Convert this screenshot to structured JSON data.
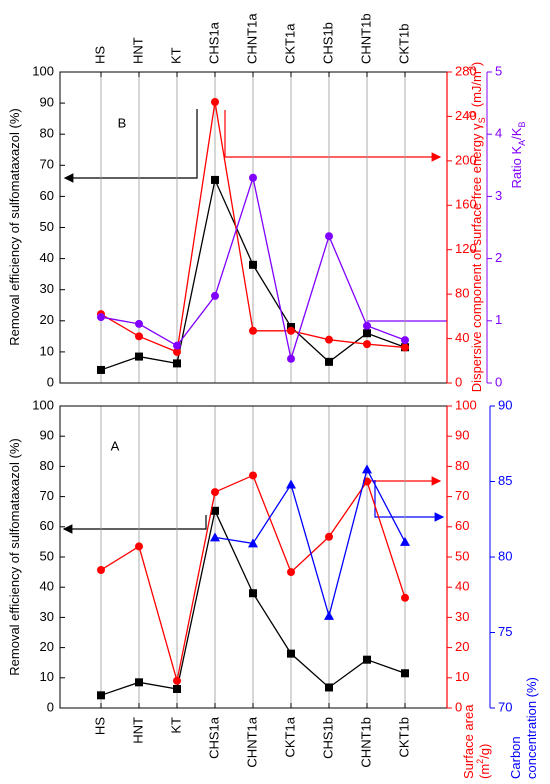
{
  "chart_data": [
    {
      "type": "line",
      "annotation": "B",
      "categories": [
        "HS",
        "HNT",
        "KT",
        "CHS1a",
        "CHNT1a",
        "CKT1a",
        "CHS1b",
        "CHNT1b",
        "CKT1b"
      ],
      "ylim": [
        0,
        100
      ],
      "yticks": [
        0,
        10,
        20,
        30,
        40,
        50,
        60,
        70,
        80,
        90,
        100
      ],
      "y2lim": [
        0,
        280
      ],
      "y2ticks": [
        0,
        40,
        80,
        120,
        160,
        200,
        240,
        280
      ],
      "y3lim": [
        0,
        5
      ],
      "y3ticks": [
        0,
        1,
        2,
        3,
        4,
        5
      ],
      "y_label": [
        [
          "Removal efficiency of sulfomataxazol (%)"
        ]
      ],
      "y2_label": [
        [
          "Dispersive component of surface free energy γ",
          {
            "text": "S",
            "script": "sub"
          },
          {
            "text": "D",
            "script": "super"
          },
          " (mJ/m",
          {
            "text": "2",
            "script": "super"
          },
          ")"
        ]
      ],
      "y3_label": [
        [
          "Ratio K",
          {
            "text": "A",
            "script": "sub"
          },
          "/K",
          {
            "text": "B",
            "script": "sub"
          }
        ]
      ],
      "series": [
        {
          "color": "#000000",
          "marker": "square",
          "axis": "y",
          "values": [
            4.2,
            8.5,
            6.3,
            65.3,
            38,
            18,
            6.8,
            16,
            11.5
          ]
        },
        {
          "color": "#ff0000",
          "marker": "circle",
          "axis": "y2",
          "values": [
            62,
            42,
            28,
            253,
            47,
            47,
            39,
            35,
            32
          ]
        },
        {
          "color": "#8000ff",
          "marker": "circle",
          "axis": "y3",
          "values": [
            1.06,
            0.95,
            0.6,
            1.4,
            3.3,
            0.39,
            2.36,
            0.92,
            0.69
          ]
        }
      ]
    },
    {
      "type": "line",
      "annotation": "A",
      "categories": [
        "HS",
        "HNT",
        "KT",
        "CHS1a",
        "CHNT1a",
        "CKT1a",
        "CHS1b",
        "CHNT1b",
        "CKT1b"
      ],
      "ylim": [
        0,
        100
      ],
      "yticks": [
        0,
        10,
        20,
        30,
        40,
        50,
        60,
        70,
        80,
        90,
        100
      ],
      "y2lim": [
        0,
        100
      ],
      "y2ticks": [
        0,
        10,
        20,
        30,
        40,
        50,
        60,
        70,
        80,
        90,
        100
      ],
      "y3lim": [
        70,
        90
      ],
      "y3ticks": [
        70,
        75,
        80,
        85,
        90
      ],
      "y_label": [
        [
          "Removal efficiency of sulfomataxazol  (%)"
        ]
      ],
      "y2_label": [
        [
          "Surface area"
        ],
        [
          "(m",
          {
            "text": "2",
            "script": "super"
          },
          "/g)"
        ]
      ],
      "y3_label": [
        [
          "Carbon"
        ],
        [
          "concentration (%)"
        ]
      ],
      "series": [
        {
          "color": "#000000",
          "marker": "square",
          "axis": "y",
          "values": [
            4.2,
            8.5,
            6.3,
            65.3,
            38,
            18,
            6.8,
            16,
            11.5
          ]
        },
        {
          "color": "#ff0000",
          "marker": "circle",
          "axis": "y2",
          "values": [
            45.7,
            53.5,
            9,
            71.5,
            77,
            45,
            56.7,
            75,
            36.5
          ]
        },
        {
          "color": "#0000ff",
          "marker": "triangle",
          "axis": "y3",
          "values": [
            null,
            null,
            null,
            81.3,
            80.9,
            84.8,
            76.1,
            85.8,
            81.0
          ]
        }
      ]
    }
  ]
}
